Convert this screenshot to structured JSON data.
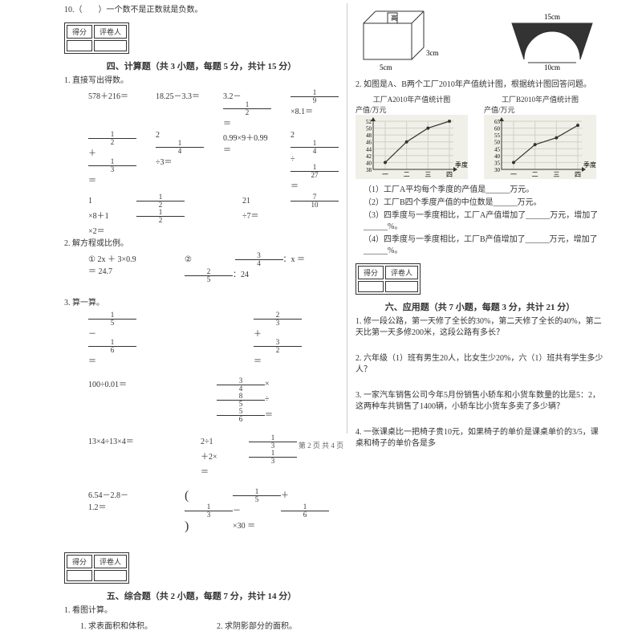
{
  "left": {
    "q10": "10.（　　）一个数不是正数就是负数。",
    "scorebox": {
      "c1": "得分",
      "c2": "评卷人"
    },
    "section4": {
      "title": "四、计算题（共 3 小题，每题 5 分，共计 15 分）"
    },
    "q1_label": "1. 直接写出得数。",
    "r1": {
      "a": "578＋216＝",
      "b": "18.25－3.3＝",
      "c": "3.2－",
      "c_frac_n": "1",
      "c_frac_d": "2",
      "c_tail": "＝",
      "d_frac_n": "1",
      "d_frac_d": "9",
      "d_tail": "×8.1＝"
    },
    "r2": {
      "a_n1": "1",
      "a_d1": "2",
      "a_mid": "＋",
      "a_n2": "1",
      "a_d2": "3",
      "a_tail": "＝",
      "b": "2",
      "b_n": "1",
      "b_d": "4",
      "b_tail": "÷3＝",
      "c": "0.99×9＋0.99＝",
      "d": "2",
      "d_n1": "1",
      "d_d1": "4",
      "d_mid": "÷",
      "d_n2": "1",
      "d_d2": "27",
      "d_tail": "＝"
    },
    "r3": {
      "a": "1",
      "a_n": "1",
      "a_d": "2",
      "a_mid": "×8＋1",
      "a_n2": "1",
      "a_d2": "2",
      "a_tail": "×2＝",
      "b": "21",
      "b_n": "7",
      "b_d": "10",
      "b_tail": "÷7＝"
    },
    "q2_label": "2. 解方程或比例。",
    "eq2_1": "① 2x ＋ 3×0.9 ＝ 24.7",
    "eq2_2_pre": "②",
    "eq2_2_n1": "3",
    "eq2_2_d1": "4",
    "eq2_2_mid": "：x ＝",
    "eq2_2_n2": "2",
    "eq2_2_d2": "5",
    "eq2_2_tail": "：24",
    "q3_label": "3. 算一算。",
    "r3a": {
      "a_n1": "1",
      "a_d1": "5",
      "a_mid": "－",
      "a_n2": "1",
      "a_d2": "6",
      "a_tail": "＝",
      "b_n1": "2",
      "b_d1": "3",
      "b_mid": "＋",
      "b_n2": "3",
      "b_d2": "2",
      "b_tail": "＝"
    },
    "r3b": {
      "a": "100÷0.01＝",
      "b_n1": "3",
      "b_d1": "4",
      "b_mid1": "×",
      "b_n2": "8",
      "b_d2": "5",
      "b_mid2": "÷",
      "b_n3": "5",
      "b_d3": "6",
      "b_tail": "＝"
    },
    "r3c": {
      "a": "13×4÷13×4＝",
      "b": "2÷1",
      "b_n1": "1",
      "b_d1": "3",
      "b_mid": "＋2×",
      "b_n2": "1",
      "b_d2": "3",
      "b_tail": "＝"
    },
    "r3d": {
      "a": "6.54－2.8－1.2＝",
      "b_open": "(",
      "b_n1": "1",
      "b_d1": "5",
      "b_m1": "＋",
      "b_n2": "1",
      "b_d2": "3",
      "b_m2": "－",
      "b_n3": "1",
      "b_d3": "6",
      "b_close": ")",
      "b_tail": "×30 ＝"
    },
    "section5": {
      "title": "五、综合题（共 2 小题，每题 7 分，共计 14 分）"
    },
    "q5_1": "1. 看图计算。",
    "q5_1a": "1. 求表面积和体积。",
    "q5_1b": "2. 求阴影部分的面积。"
  },
  "right": {
    "cuboid": {
      "w": "5cm",
      "d": "3cm",
      "h_label": "高"
    },
    "arch": {
      "top": "15cm",
      "bottom": "10cm"
    },
    "q2_label": "2. 如图是A、B两个工厂2010年产值统计图，根据统计图回答问题。",
    "chartA": {
      "title": "工厂A2010年产值统计图",
      "ylab": "产值/万元",
      "yticks": [
        "38",
        "40",
        "42",
        "44",
        "46",
        "48",
        "50",
        "52"
      ],
      "xticks": [
        "一",
        "二",
        "三",
        "四"
      ],
      "xlab": "季度",
      "points": [
        [
          0,
          40
        ],
        [
          1,
          46
        ],
        [
          2,
          50
        ],
        [
          3,
          52
        ]
      ]
    },
    "chartB": {
      "title": "工厂B2010年产值统计图",
      "ylab": "产值/万元",
      "yticks": [
        "30",
        "35",
        "40",
        "45",
        "50",
        "55",
        "60",
        "65"
      ],
      "xticks": [
        "一",
        "二",
        "三",
        "四"
      ],
      "xlab": "季度",
      "points": [
        [
          0,
          35
        ],
        [
          1,
          48
        ],
        [
          2,
          53
        ],
        [
          3,
          62
        ]
      ]
    },
    "sub1": "（1）工厂A平均每个季度的产值是______万元。",
    "sub2": "（2）工厂B四个季度产值的中位数是______万元。",
    "sub3": "（3）四季度与一季度相比，工厂A产值增加了______万元，增加了______%。",
    "sub4": "（4）四季度与一季度相比，工厂B产值增加了______万元，增加了______%。",
    "scorebox": {
      "c1": "得分",
      "c2": "评卷人"
    },
    "section6": {
      "title": "六、应用题（共 7 小题，每题 3 分，共计 21 分）"
    },
    "q6_1": "1. 修一段公路，第一天修了全长的30%，第二天修了全长的40%，第二天比第一天多修200米，这段公路有多长？",
    "q6_2": "2. 六年级（1）班有男生20人，比女生少20%，六（1）班共有学生多少人？",
    "q6_3": "3. 一家汽车销售公司今年5月份销售小轿车和小货车数量的比是5：2，这两种车共销售了1400辆，小轿车比小货车多卖了多少辆？",
    "q6_4": "4. 一张课桌比一把椅子贵10元，如果椅子的单价是课桌单价的3/5，课桌和椅子的单价各是多"
  },
  "footer": "第 2 页 共 4 页",
  "colors": {
    "text": "#333333",
    "grid": "#d0d0c8",
    "chartbg": "#f0f0e8",
    "border": "#333333"
  }
}
